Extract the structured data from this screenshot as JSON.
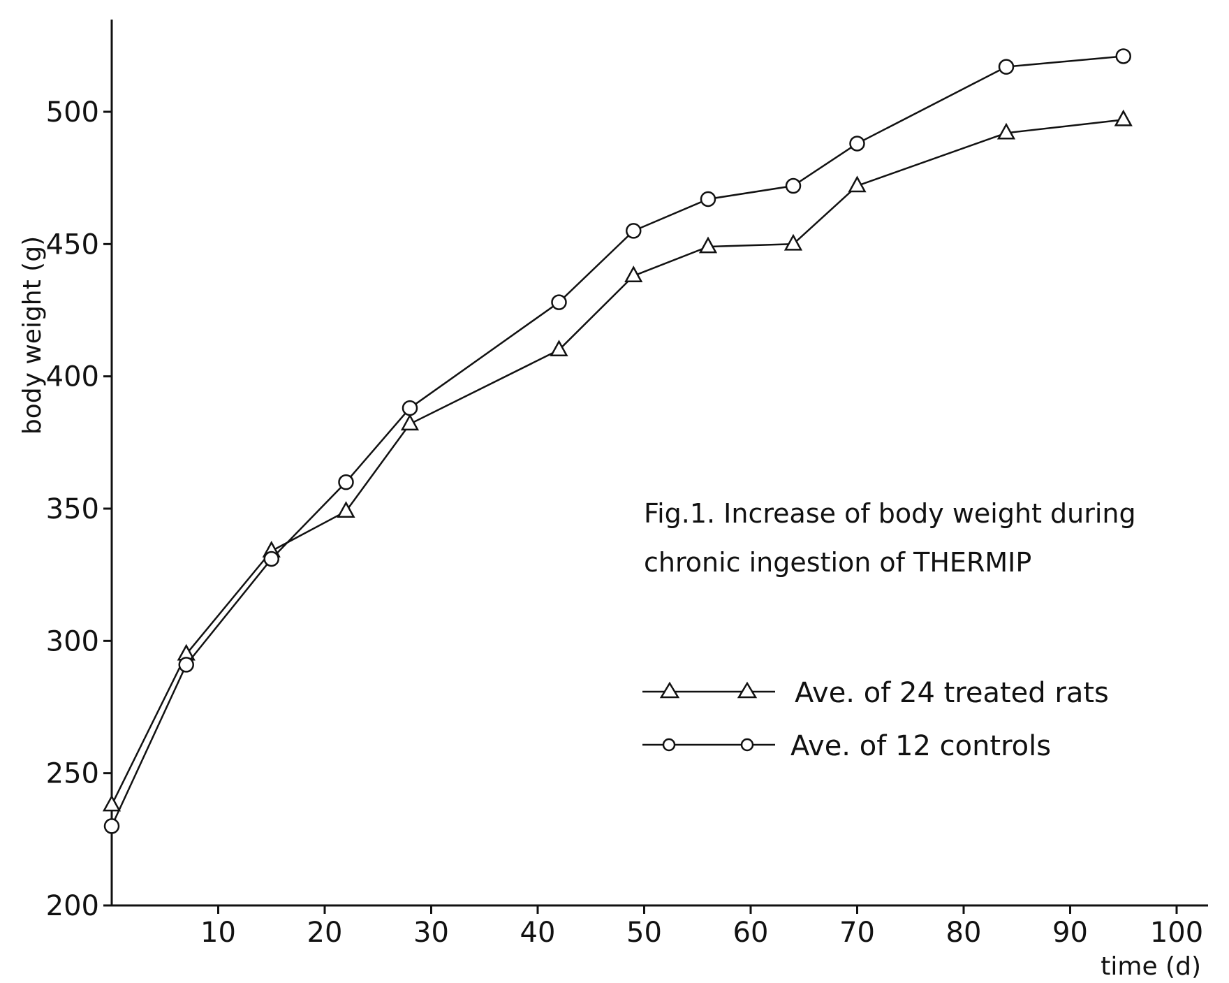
{
  "chart_data": {
    "type": "line",
    "caption_lines": [
      "Fig.1. Increase of body weight during",
      "chronic ingestion of   THERMIP"
    ],
    "xlabel": "time (d)",
    "ylabel": "body weight (g)",
    "xlim": [
      0,
      100
    ],
    "ylim": [
      200,
      520
    ],
    "x_ticks": [
      10,
      20,
      30,
      40,
      50,
      60,
      70,
      80,
      90,
      100
    ],
    "y_ticks": [
      200,
      250,
      300,
      350,
      400,
      450,
      500
    ],
    "grid": false,
    "legend_position": "right",
    "series": [
      {
        "name": "Ave. of 24 treated rats",
        "marker": "triangle",
        "x": [
          0,
          7,
          15,
          22,
          28,
          42,
          49,
          56,
          64,
          70,
          84,
          95
        ],
        "y": [
          238,
          295,
          334,
          349,
          382,
          410,
          438,
          449,
          450,
          472,
          492,
          497
        ]
      },
      {
        "name": "Ave. of 12 controls",
        "marker": "circle",
        "x": [
          0,
          7,
          15,
          22,
          28,
          42,
          49,
          56,
          64,
          70,
          84,
          95
        ],
        "y": [
          230,
          291,
          331,
          360,
          388,
          428,
          455,
          467,
          472,
          488,
          517,
          521
        ]
      }
    ]
  }
}
